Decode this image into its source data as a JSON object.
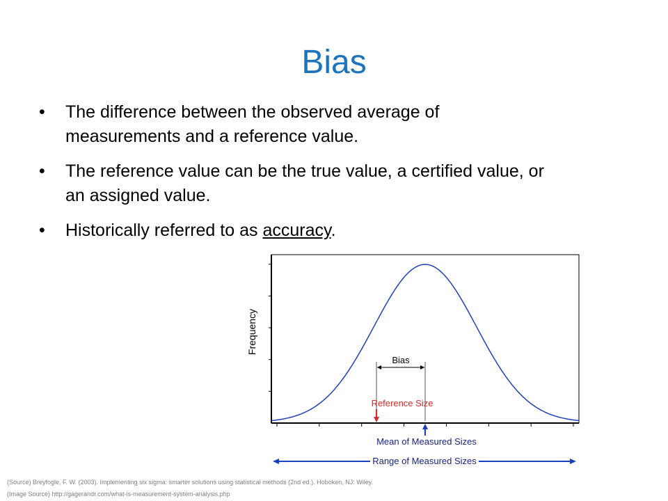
{
  "slide": {
    "title": "Bias",
    "bullets": [
      {
        "lines": [
          "The difference between the observed average of",
          "measurements and a reference value."
        ]
      },
      {
        "lines": [
          "The reference value can be the true value, a certified value, or",
          "an assigned value."
        ]
      },
      {
        "prefix": "Historically referred to as ",
        "underlined": "accuracy",
        "suffix": "."
      }
    ]
  },
  "chart_data": {
    "type": "line",
    "ylabel": "Frequency",
    "xlabel": "",
    "x": [
      -3.0,
      -2.5,
      -2.0,
      -1.5,
      -1.0,
      -0.5,
      0.0,
      0.5,
      1.0,
      1.5,
      2.0,
      2.5,
      3.0
    ],
    "series": [
      {
        "values": [
          0.011,
          0.044,
          0.135,
          0.325,
          0.607,
          0.882,
          1.0,
          0.882,
          0.607,
          0.325,
          0.135,
          0.044,
          0.011
        ]
      }
    ],
    "grid": false,
    "annotations": {
      "bias_label": "Bias",
      "reference_label": "Reference Size",
      "mean_label": "Mean of Measured Sizes",
      "range_label": "Range of Measured Sizes"
    },
    "colors": {
      "curve": "#1f3fbf",
      "reference": "#d62728",
      "mean": "#1a40c0",
      "frame": "#000000"
    }
  },
  "footnotes": {
    "source": "(Source) Breyfogle, F. W. (2003). Implementing six sigma: smarter solutions using statistical methods (2nd ed.). Hoboken, NJ: Wiley.",
    "image_source": "(Image Source) http://gagerandr.com/what-is-measurement-system-analysis.php"
  }
}
